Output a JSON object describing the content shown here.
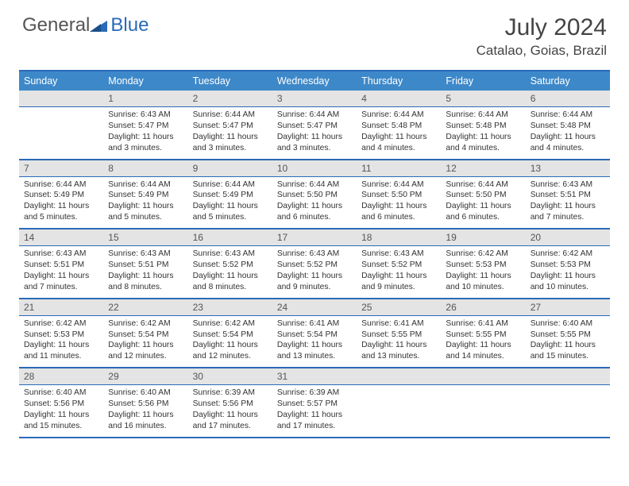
{
  "logo": {
    "text1": "General",
    "text2": "Blue"
  },
  "title": "July 2024",
  "location": "Catalao, Goias, Brazil",
  "colors": {
    "header_bg": "#3d88c9",
    "border": "#2a6ab8",
    "numrow_bg": "#e4e4e4",
    "text": "#333333"
  },
  "day_labels": [
    "Sunday",
    "Monday",
    "Tuesday",
    "Wednesday",
    "Thursday",
    "Friday",
    "Saturday"
  ],
  "weeks": [
    {
      "nums": [
        "",
        "1",
        "2",
        "3",
        "4",
        "5",
        "6"
      ],
      "cells": [
        null,
        {
          "sunrise": "6:43 AM",
          "sunset": "5:47 PM",
          "daylight": "11 hours and 3 minutes."
        },
        {
          "sunrise": "6:44 AM",
          "sunset": "5:47 PM",
          "daylight": "11 hours and 3 minutes."
        },
        {
          "sunrise": "6:44 AM",
          "sunset": "5:47 PM",
          "daylight": "11 hours and 3 minutes."
        },
        {
          "sunrise": "6:44 AM",
          "sunset": "5:48 PM",
          "daylight": "11 hours and 4 minutes."
        },
        {
          "sunrise": "6:44 AM",
          "sunset": "5:48 PM",
          "daylight": "11 hours and 4 minutes."
        },
        {
          "sunrise": "6:44 AM",
          "sunset": "5:48 PM",
          "daylight": "11 hours and 4 minutes."
        }
      ]
    },
    {
      "nums": [
        "7",
        "8",
        "9",
        "10",
        "11",
        "12",
        "13"
      ],
      "cells": [
        {
          "sunrise": "6:44 AM",
          "sunset": "5:49 PM",
          "daylight": "11 hours and 5 minutes."
        },
        {
          "sunrise": "6:44 AM",
          "sunset": "5:49 PM",
          "daylight": "11 hours and 5 minutes."
        },
        {
          "sunrise": "6:44 AM",
          "sunset": "5:49 PM",
          "daylight": "11 hours and 5 minutes."
        },
        {
          "sunrise": "6:44 AM",
          "sunset": "5:50 PM",
          "daylight": "11 hours and 6 minutes."
        },
        {
          "sunrise": "6:44 AM",
          "sunset": "5:50 PM",
          "daylight": "11 hours and 6 minutes."
        },
        {
          "sunrise": "6:44 AM",
          "sunset": "5:50 PM",
          "daylight": "11 hours and 6 minutes."
        },
        {
          "sunrise": "6:43 AM",
          "sunset": "5:51 PM",
          "daylight": "11 hours and 7 minutes."
        }
      ]
    },
    {
      "nums": [
        "14",
        "15",
        "16",
        "17",
        "18",
        "19",
        "20"
      ],
      "cells": [
        {
          "sunrise": "6:43 AM",
          "sunset": "5:51 PM",
          "daylight": "11 hours and 7 minutes."
        },
        {
          "sunrise": "6:43 AM",
          "sunset": "5:51 PM",
          "daylight": "11 hours and 8 minutes."
        },
        {
          "sunrise": "6:43 AM",
          "sunset": "5:52 PM",
          "daylight": "11 hours and 8 minutes."
        },
        {
          "sunrise": "6:43 AM",
          "sunset": "5:52 PM",
          "daylight": "11 hours and 9 minutes."
        },
        {
          "sunrise": "6:43 AM",
          "sunset": "5:52 PM",
          "daylight": "11 hours and 9 minutes."
        },
        {
          "sunrise": "6:42 AM",
          "sunset": "5:53 PM",
          "daylight": "11 hours and 10 minutes."
        },
        {
          "sunrise": "6:42 AM",
          "sunset": "5:53 PM",
          "daylight": "11 hours and 10 minutes."
        }
      ]
    },
    {
      "nums": [
        "21",
        "22",
        "23",
        "24",
        "25",
        "26",
        "27"
      ],
      "cells": [
        {
          "sunrise": "6:42 AM",
          "sunset": "5:53 PM",
          "daylight": "11 hours and 11 minutes."
        },
        {
          "sunrise": "6:42 AM",
          "sunset": "5:54 PM",
          "daylight": "11 hours and 12 minutes."
        },
        {
          "sunrise": "6:42 AM",
          "sunset": "5:54 PM",
          "daylight": "11 hours and 12 minutes."
        },
        {
          "sunrise": "6:41 AM",
          "sunset": "5:54 PM",
          "daylight": "11 hours and 13 minutes."
        },
        {
          "sunrise": "6:41 AM",
          "sunset": "5:55 PM",
          "daylight": "11 hours and 13 minutes."
        },
        {
          "sunrise": "6:41 AM",
          "sunset": "5:55 PM",
          "daylight": "11 hours and 14 minutes."
        },
        {
          "sunrise": "6:40 AM",
          "sunset": "5:55 PM",
          "daylight": "11 hours and 15 minutes."
        }
      ]
    },
    {
      "nums": [
        "28",
        "29",
        "30",
        "31",
        "",
        "",
        ""
      ],
      "cells": [
        {
          "sunrise": "6:40 AM",
          "sunset": "5:56 PM",
          "daylight": "11 hours and 15 minutes."
        },
        {
          "sunrise": "6:40 AM",
          "sunset": "5:56 PM",
          "daylight": "11 hours and 16 minutes."
        },
        {
          "sunrise": "6:39 AM",
          "sunset": "5:56 PM",
          "daylight": "11 hours and 17 minutes."
        },
        {
          "sunrise": "6:39 AM",
          "sunset": "5:57 PM",
          "daylight": "11 hours and 17 minutes."
        },
        null,
        null,
        null
      ]
    }
  ],
  "labels": {
    "sunrise": "Sunrise:",
    "sunset": "Sunset:",
    "daylight": "Daylight:"
  }
}
